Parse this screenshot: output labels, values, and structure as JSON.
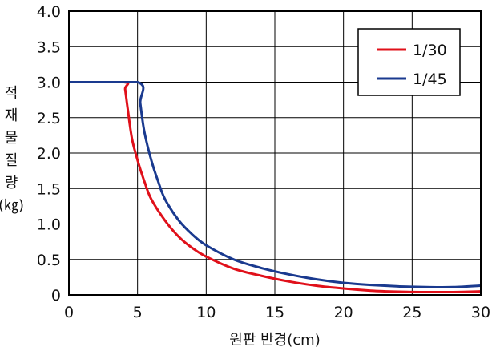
{
  "chart_data": {
    "type": "line",
    "xlabel": "원판 반경(cm)",
    "ylabel": "적재물 질량 (㎏)",
    "ylabel_lines": [
      "적",
      "재",
      "물",
      "질",
      "량",
      "(㎏)"
    ],
    "xlim": [
      0,
      30
    ],
    "ylim": [
      0,
      4.0
    ],
    "x_ticks": [
      "0",
      "5",
      "10",
      "15",
      "20",
      "25",
      "30"
    ],
    "y_ticks": [
      "0",
      "0.5",
      "1.0",
      "1.5",
      "2.0",
      "2.5",
      "3.0",
      "3.5",
      "4.0"
    ],
    "grid": true,
    "legend_position": "top-right",
    "series": [
      {
        "name": "1/30",
        "color": "#e0101a",
        "x": [
          0,
          4,
          4.1,
          4.3,
          4.6,
          5,
          5.5,
          6,
          7,
          8,
          9,
          10,
          12,
          14,
          16,
          18,
          20,
          22,
          24,
          26,
          28,
          30
        ],
        "y": [
          3.0,
          3.0,
          2.9,
          2.6,
          2.2,
          1.9,
          1.6,
          1.35,
          1.05,
          0.82,
          0.66,
          0.54,
          0.37,
          0.27,
          0.19,
          0.13,
          0.09,
          0.06,
          0.045,
          0.04,
          0.04,
          0.05
        ]
      },
      {
        "name": "1/45",
        "color": "#1a3a8f",
        "x": [
          0,
          5,
          5.2,
          5.5,
          6,
          6.5,
          7,
          8,
          9,
          10,
          12,
          14,
          16,
          18,
          20,
          22,
          24,
          26,
          28,
          30
        ],
        "y": [
          3.0,
          3.0,
          2.7,
          2.3,
          1.9,
          1.6,
          1.35,
          1.05,
          0.85,
          0.7,
          0.5,
          0.38,
          0.29,
          0.22,
          0.17,
          0.14,
          0.12,
          0.11,
          0.11,
          0.13
        ]
      }
    ]
  }
}
